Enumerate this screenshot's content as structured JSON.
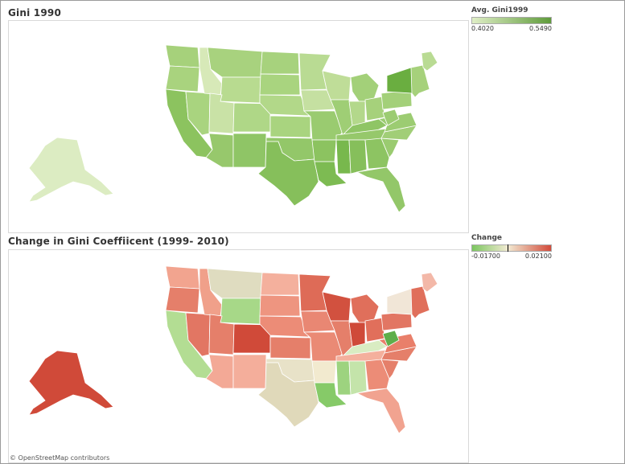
{
  "map1": {
    "title": "Gini 1990",
    "legend": {
      "title": "Avg. Gini1999",
      "min": "0.4020",
      "max": "0.5490",
      "color_low": "#dfeec6",
      "color_high": "#5f9b3b"
    }
  },
  "map2": {
    "title": "Change in Gini Coeffiicent (1999- 2010)",
    "legend": {
      "title": "Change",
      "min": "-0.01700",
      "max": "0.02100",
      "color_low": "#7bc65f",
      "color_mid": "#f2ead2",
      "color_high": "#d24b3b"
    }
  },
  "credit": "© OpenStreetMap contributors",
  "state_colors_1990": {
    "ca": "#8cc35f",
    "or": "#a9d37e",
    "wa": "#a6d17b",
    "nv": "#a9d47f",
    "id": "#d7e9b8",
    "mt": "#a8d27e",
    "wy": "#b8db90",
    "ut": "#c9e2a6",
    "az": "#97c86c",
    "co": "#afd787",
    "nm": "#8fc566",
    "nd": "#a7d27d",
    "sd": "#a9d47f",
    "ne": "#b2d889",
    "ks": "#a9d47f",
    "ok": "#93c769",
    "tx": "#86bf5b",
    "mn": "#b9db93",
    "ia": "#c5e0a1",
    "mo": "#9acb70",
    "ar": "#8cc360",
    "la": "#7dbb52",
    "wi": "#bfdd98",
    "il": "#9fce75",
    "ms": "#78b84d",
    "mi": "#a3d079",
    "in": "#b3d88b",
    "ky": "#8fc565",
    "tn": "#96c86b",
    "al": "#86bf5b",
    "oh": "#a6d17b",
    "ga": "#8dc462",
    "fl": "#93c769",
    "sc": "#9acb70",
    "nc": "#a1ce77",
    "va": "#9ccc72",
    "wv": "#9ccc72",
    "pa": "#a3d079",
    "ny": "#6aae40",
    "ne_states": "#a6d17b",
    "me": "#b9db93",
    "ak": "#dcecc2"
  },
  "state_colors_change": {
    "ca": "#b3dd93",
    "or": "#e57f6a",
    "wa": "#f2a48f",
    "nv": "#e27663",
    "id": "#f0a08a",
    "mt": "#dfdcc0",
    "wy": "#a7d888",
    "ut": "#e57f6a",
    "az": "#f3a996",
    "co": "#d04a39",
    "nm": "#f4ae9b",
    "nd": "#f4b09d",
    "sd": "#ee9580",
    "ne": "#ec8c77",
    "ks": "#e57f6a",
    "ok": "#e8e2c8",
    "tx": "#e0d9ba",
    "mn": "#de6b57",
    "ia": "#e98773",
    "mo": "#ea8a75",
    "ar": "#f2eacf",
    "la": "#86ca68",
    "wi": "#d2513f",
    "il": "#e57f6a",
    "ms": "#9dd37f",
    "mi": "#e06f5b",
    "in": "#cf4a39",
    "ky": "#d9ecc2",
    "tn": "#f4b09d",
    "al": "#c4e4aa",
    "oh": "#e16f5b",
    "ga": "#ec8c77",
    "fl": "#f1a390",
    "sc": "#e57f6a",
    "nc": "#e57f6a",
    "va": "#e97f6a",
    "wv": "#5fae4b",
    "pa": "#e27663",
    "ny": "#f1e6d7",
    "ne_states": "#e06f5b",
    "me": "#f3b8a8",
    "ak": "#d04a39"
  }
}
